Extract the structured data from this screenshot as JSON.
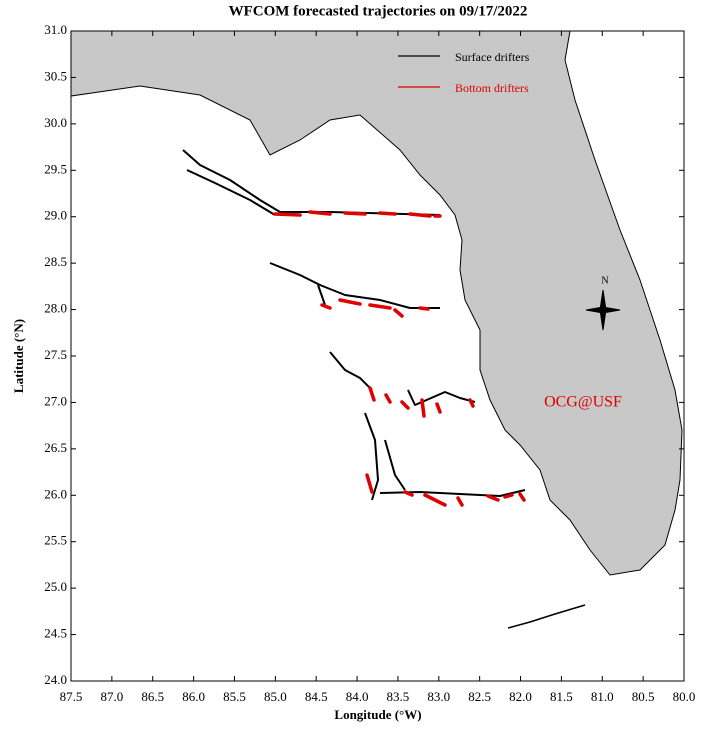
{
  "title": "WFCOM forecasted trajectories on 09/17/2022",
  "x_axis": {
    "label": "Longitude (°W)",
    "lim": [
      87.5,
      80.0
    ],
    "ticks": [
      87.5,
      {
        "value": 87,
        "label": "87.0"
      },
      86.5,
      {
        "value": 86,
        "label": "86.0"
      },
      85.5,
      {
        "value": 85,
        "label": "85.0"
      },
      84.5,
      {
        "value": 84,
        "label": "84.0"
      },
      83.5,
      {
        "value": 83,
        "label": "83.0"
      },
      82.5,
      {
        "value": 82,
        "label": "82.0"
      },
      81.5,
      {
        "value": 81,
        "label": "81.0"
      },
      80.5,
      {
        "value": 80,
        "label": "80.0"
      }
    ]
  },
  "y_axis": {
    "label": "Latitude (°N)",
    "lim": [
      24.0,
      31.0
    ],
    "ticks": [
      {
        "value": 24,
        "label": "24.0"
      },
      24.5,
      {
        "value": 25,
        "label": "25.0"
      },
      25.5,
      {
        "value": 26,
        "label": "26.0"
      },
      26.5,
      {
        "value": 27,
        "label": "27.0"
      },
      27.5,
      {
        "value": 28,
        "label": "28.0"
      },
      28.5,
      {
        "value": 29,
        "label": "29.0"
      },
      29.5,
      {
        "value": 30,
        "label": "30.0"
      },
      30.5,
      {
        "value": 31,
        "label": "31.0"
      }
    ]
  },
  "legend": [
    {
      "name": "Surface drifters",
      "color": "#000000"
    },
    {
      "name": "Bottom drifters",
      "color": "#e00000"
    }
  ],
  "annotation": "OCG@USF",
  "compass": "N"
}
